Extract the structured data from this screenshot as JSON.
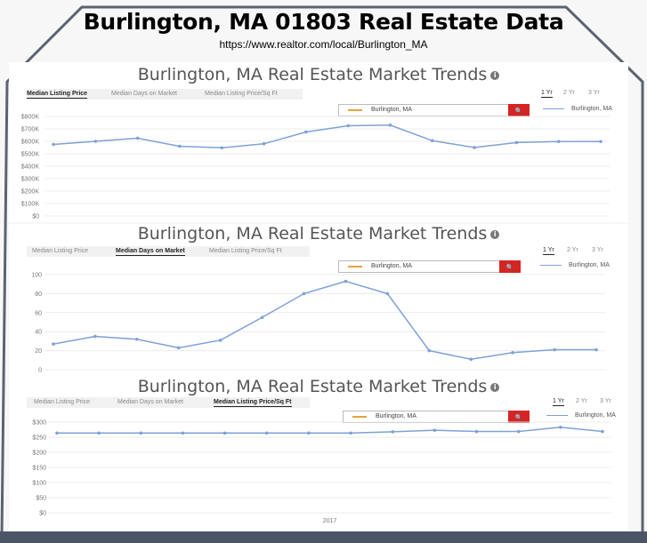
{
  "header": {
    "title": "Burlington, MA 01803 Real Estate Data",
    "url": "https://www.realtor.com/local/Burlington_MA"
  },
  "panel_title": "Burlington, MA Real Estate Market Trends",
  "info_glyph": "i",
  "tabs": [
    "Median Listing Price",
    "Median Days on Market",
    "Median Listing Price/Sq Ft"
  ],
  "year_options": [
    "1 Yr",
    "2 Yr",
    "3 Yr"
  ],
  "search": {
    "value": "Burlington, MA",
    "button_icon": "search-icon",
    "button_glyph": "🔍"
  },
  "legend_label": "Burlington, MA",
  "colors": {
    "series": "#7ea1d6",
    "search_button": "#d42424",
    "search_line": "#e8a23c"
  },
  "chart_data": [
    {
      "type": "line",
      "active_tab": "Median Listing Price",
      "y_tick_labels": [
        "$0",
        "$100K",
        "$200K",
        "$300K",
        "$400K",
        "$500K",
        "$600K",
        "$700K",
        "$800K"
      ],
      "ylim": [
        0,
        800000
      ],
      "grid": true,
      "series": [
        {
          "name": "Burlington, MA",
          "values": [
            575000,
            600000,
            625000,
            560000,
            548000,
            580000,
            675000,
            725000,
            730000,
            605000,
            550000,
            590000,
            598000,
            598000
          ]
        }
      ]
    },
    {
      "type": "line",
      "active_tab": "Median Days on Market",
      "y_tick_labels": [
        "0",
        "20",
        "40",
        "60",
        "80",
        "100"
      ],
      "ylim": [
        0,
        100
      ],
      "grid": true,
      "series": [
        {
          "name": "Burlington, MA",
          "values": [
            27,
            35,
            32,
            23,
            31,
            55,
            80,
            93,
            80,
            20,
            11,
            18,
            21,
            21
          ]
        }
      ]
    },
    {
      "type": "line",
      "active_tab": "Median Listing Price/Sq Ft",
      "y_tick_labels": [
        "$0",
        "$50",
        "$100",
        "$150",
        "$200",
        "$250",
        "$300"
      ],
      "ylim": [
        0,
        300
      ],
      "grid": true,
      "x_label_text": "2017",
      "series": [
        {
          "name": "Burlington, MA",
          "values": [
            264,
            264,
            264,
            264,
            264,
            264,
            264,
            264,
            268,
            273,
            269,
            269,
            283,
            269
          ]
        }
      ]
    }
  ]
}
